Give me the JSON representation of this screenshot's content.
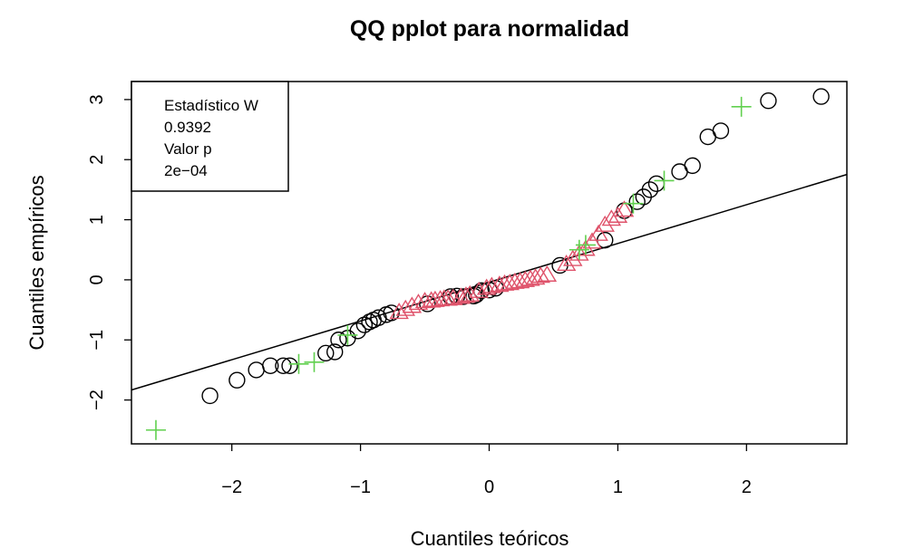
{
  "chart_data": {
    "type": "scatter",
    "title": "QQ pplot para normalidad",
    "xlabel": "Cuantiles teóricos",
    "ylabel": "Cuantiles empíricos",
    "xlim": [
      -2.78,
      2.78
    ],
    "ylim": [
      -2.73,
      3.3
    ],
    "xticks": [
      -2,
      -1,
      0,
      1,
      2
    ],
    "yticks": [
      -2,
      -1,
      0,
      1,
      2,
      3
    ],
    "xtick_labels": [
      "−2",
      "−1",
      "0",
      "1",
      "2"
    ],
    "ytick_labels": [
      "−2",
      "−1",
      "0",
      "1",
      "2",
      "3"
    ],
    "grid": false,
    "legend": {
      "placement": "top-left",
      "lines": [
        "Estadístico W",
        "0.9392",
        "Valor p",
        "2e−04"
      ]
    },
    "reference_line": {
      "intercept": -0.04,
      "slope": 0.645
    },
    "colors": {
      "circles": "#000000",
      "triangles": "#DF536B",
      "crosses": "#61D04F",
      "line": "#000000"
    },
    "series": [
      {
        "marker": "circle",
        "color": "#000000",
        "x": [
          -2.17,
          -1.96,
          -1.81,
          -1.7,
          -1.6,
          -1.55,
          -1.27,
          -1.2,
          -1.17,
          -1.1,
          -1.02,
          -0.97,
          -0.93,
          -0.9,
          -0.86,
          -0.8,
          -0.76,
          -0.48,
          -0.3,
          -0.25,
          -0.2,
          -0.12,
          -0.1,
          -0.06,
          0.0,
          0.05,
          0.55,
          0.9,
          1.05,
          1.15,
          1.2,
          1.25,
          1.3,
          1.48,
          1.58,
          1.7,
          1.8,
          2.17,
          2.58
        ],
        "y": [
          -1.93,
          -1.67,
          -1.5,
          -1.43,
          -1.43,
          -1.43,
          -1.22,
          -1.2,
          -1.0,
          -0.97,
          -0.85,
          -0.75,
          -0.7,
          -0.67,
          -0.63,
          -0.58,
          -0.55,
          -0.4,
          -0.28,
          -0.27,
          -0.28,
          -0.27,
          -0.25,
          -0.18,
          -0.17,
          -0.14,
          0.24,
          0.66,
          1.15,
          1.3,
          1.38,
          1.5,
          1.6,
          1.8,
          1.9,
          2.38,
          2.48,
          2.98,
          3.05
        ]
      },
      {
        "marker": "triangle",
        "color": "#DF536B",
        "x": [
          -0.7,
          -0.65,
          -0.6,
          -0.55,
          -0.5,
          -0.45,
          -0.42,
          -0.38,
          -0.35,
          -0.32,
          -0.28,
          -0.22,
          -0.18,
          -0.15,
          -0.08,
          -0.02,
          0.02,
          0.08,
          0.12,
          0.16,
          0.2,
          0.24,
          0.28,
          0.32,
          0.36,
          0.4,
          0.45,
          0.6,
          0.65,
          0.7,
          0.75,
          0.8,
          0.85,
          0.9,
          0.95,
          1.0,
          1.05
        ],
        "y": [
          -0.55,
          -0.5,
          -0.45,
          -0.4,
          -0.37,
          -0.36,
          -0.35,
          -0.34,
          -0.33,
          -0.33,
          -0.32,
          -0.3,
          -0.28,
          -0.26,
          -0.2,
          -0.15,
          -0.12,
          -0.1,
          -0.08,
          -0.07,
          -0.05,
          -0.04,
          -0.02,
          0.0,
          0.02,
          0.05,
          0.07,
          0.25,
          0.33,
          0.42,
          0.5,
          0.62,
          0.75,
          0.9,
          1.0,
          1.05,
          1.15
        ]
      },
      {
        "marker": "cross",
        "color": "#61D04F",
        "x": [
          -2.59,
          -1.48,
          -1.36,
          -1.1,
          0.7,
          0.75,
          1.12,
          1.36,
          1.96
        ],
        "y": [
          -2.5,
          -1.4,
          -1.37,
          -0.92,
          0.5,
          0.58,
          1.27,
          1.65,
          2.88
        ]
      }
    ]
  }
}
